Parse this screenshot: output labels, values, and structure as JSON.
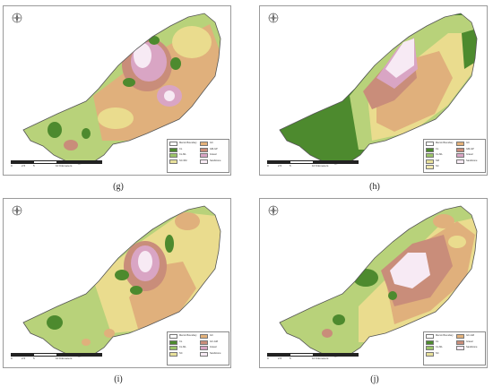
{
  "panels": [
    {
      "label": "(g)",
      "legend": [
        {
          "name": "Mersin Boundary",
          "color": "#ffffff"
        },
        {
          "name": "CL",
          "color": "#4d8a2e"
        },
        {
          "name": "CL-ML",
          "color": "#9cc46a"
        },
        {
          "name": "SC-SM",
          "color": "#e8e09a"
        },
        {
          "name": "GC",
          "color": "#e3b17a"
        },
        {
          "name": "GM-GP",
          "color": "#c98d7a"
        },
        {
          "name": "Gravel",
          "color": "#d9a5c4"
        },
        {
          "name": "Sandstone",
          "color": "#f7eaf4"
        }
      ],
      "scale_ticks": [
        "0",
        "2.5",
        "5",
        "10 Kilometers"
      ]
    },
    {
      "label": "(h)",
      "legend": [
        {
          "name": "Mersin Boundary",
          "color": "#ffffff"
        },
        {
          "name": "CL",
          "color": "#4d8a2e"
        },
        {
          "name": "CL-ML",
          "color": "#9cc46a"
        },
        {
          "name": "SM",
          "color": "#e8e09a"
        },
        {
          "name": "SC",
          "color": "#f1e8b0"
        },
        {
          "name": "GC",
          "color": "#e3b17a"
        },
        {
          "name": "GM-GP",
          "color": "#c98d7a"
        },
        {
          "name": "Gravel",
          "color": "#d9a5c4"
        },
        {
          "name": "Sandstone",
          "color": "#f7eaf4"
        }
      ],
      "scale_ticks": [
        "0",
        "2.5",
        "5",
        "10 Kilometers"
      ]
    },
    {
      "label": "(i)",
      "legend": [
        {
          "name": "Mersin Boundary",
          "color": "#ffffff"
        },
        {
          "name": "CL",
          "color": "#4d8a2e"
        },
        {
          "name": "CL-ML",
          "color": "#9cc46a"
        },
        {
          "name": "SC",
          "color": "#e8e09a"
        },
        {
          "name": "GC",
          "color": "#e3b17a"
        },
        {
          "name": "GC-GM",
          "color": "#c98d7a"
        },
        {
          "name": "Gravel",
          "color": "#d9a5c4"
        },
        {
          "name": "Sandstone",
          "color": "#f7eaf4"
        }
      ],
      "scale_ticks": [
        "0",
        "2.5",
        "5",
        "10 Kilometers"
      ]
    },
    {
      "label": "(j)",
      "legend": [
        {
          "name": "Mersin Boundary",
          "color": "#ffffff"
        },
        {
          "name": "CL",
          "color": "#4d8a2e"
        },
        {
          "name": "CL-ML",
          "color": "#9cc46a"
        },
        {
          "name": "SC",
          "color": "#e8e09a"
        },
        {
          "name": "GC-GM",
          "color": "#e3b17a"
        },
        {
          "name": "Gravel",
          "color": "#c98d7a"
        },
        {
          "name": "Sandstone",
          "color": "#f7eaf4"
        }
      ],
      "scale_ticks": [
        "0",
        "2.5",
        "5",
        "10 Kilometers"
      ]
    }
  ],
  "colors": {
    "dark_green": "#4d8a2e",
    "light_green": "#b8d27a",
    "yellow": "#eadc8e",
    "tan": "#e0b07c",
    "mauve": "#c98d7a",
    "pink": "#d9a5c4",
    "pale": "#f7eaf4",
    "panel_border": "#9a9a9a"
  }
}
